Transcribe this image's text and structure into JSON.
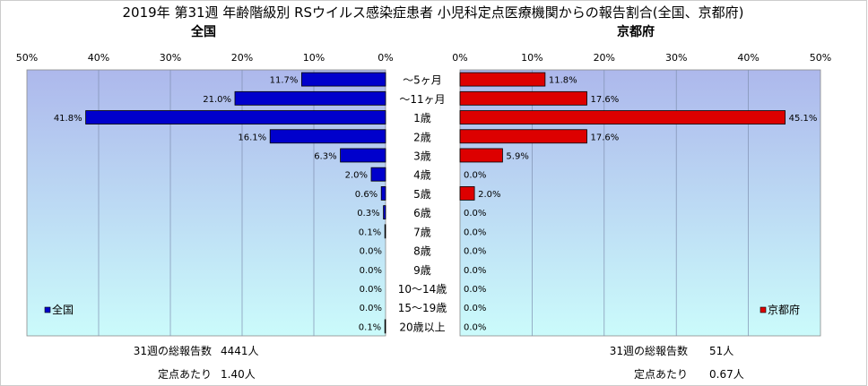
{
  "title": "2019年 第31週 年齢階級別 RSウイルス感染症患者 小児科定点医療機関からの報告割合(全国、京都府)",
  "colors": {
    "national": "#0000CC",
    "kyoto": "#DD0000",
    "plot_bg_top": "#ADB8EC",
    "plot_bg_bottom": "#CBFBFB"
  },
  "chart_data": {
    "type": "bar",
    "orientation": "horizontal-butterfly",
    "categories": [
      "～5ヶ月",
      "～11ヶ月",
      "1歳",
      "2歳",
      "3歳",
      "4歳",
      "5歳",
      "6歳",
      "7歳",
      "8歳",
      "9歳",
      "10～14歳",
      "15～19歳",
      "20歳以上"
    ],
    "xlim": [
      0,
      50
    ],
    "ticks": [
      "0%",
      "10%",
      "20%",
      "30%",
      "40%",
      "50%"
    ],
    "grid": true,
    "panels": [
      {
        "subtitle": "全国",
        "direction": "left",
        "legend": "全国",
        "legend_position": "bottom-left",
        "values": [
          11.7,
          21.0,
          41.8,
          16.1,
          6.3,
          2.0,
          0.6,
          0.3,
          0.1,
          0.0,
          0.0,
          0.0,
          0.0,
          0.1
        ],
        "value_labels": [
          "11.7%",
          "21.0%",
          "41.8%",
          "16.1%",
          "6.3%",
          "2.0%",
          "0.6%",
          "0.3%",
          "0.1%",
          "0.0%",
          "0.0%",
          "0.0%",
          "0.0%",
          "0.1%"
        ],
        "summary": [
          {
            "label": "31週の総報告数",
            "value": "4441人"
          },
          {
            "label": "定点あたり",
            "value": "1.40人"
          }
        ]
      },
      {
        "subtitle": "京都府",
        "direction": "right",
        "legend": "京都府",
        "legend_position": "bottom-right",
        "values": [
          11.8,
          17.6,
          45.1,
          17.6,
          5.9,
          0.0,
          2.0,
          0.0,
          0.0,
          0.0,
          0.0,
          0.0,
          0.0,
          0.0
        ],
        "value_labels": [
          "11.8%",
          "17.6%",
          "45.1%",
          "17.6%",
          "5.9%",
          "0.0%",
          "2.0%",
          "0.0%",
          "0.0%",
          "0.0%",
          "0.0%",
          "0.0%",
          "0.0%",
          "0.0%"
        ],
        "summary": [
          {
            "label": "31週の総報告数",
            "value": "51人"
          },
          {
            "label": "定点あたり",
            "value": "0.67人"
          }
        ]
      }
    ]
  }
}
